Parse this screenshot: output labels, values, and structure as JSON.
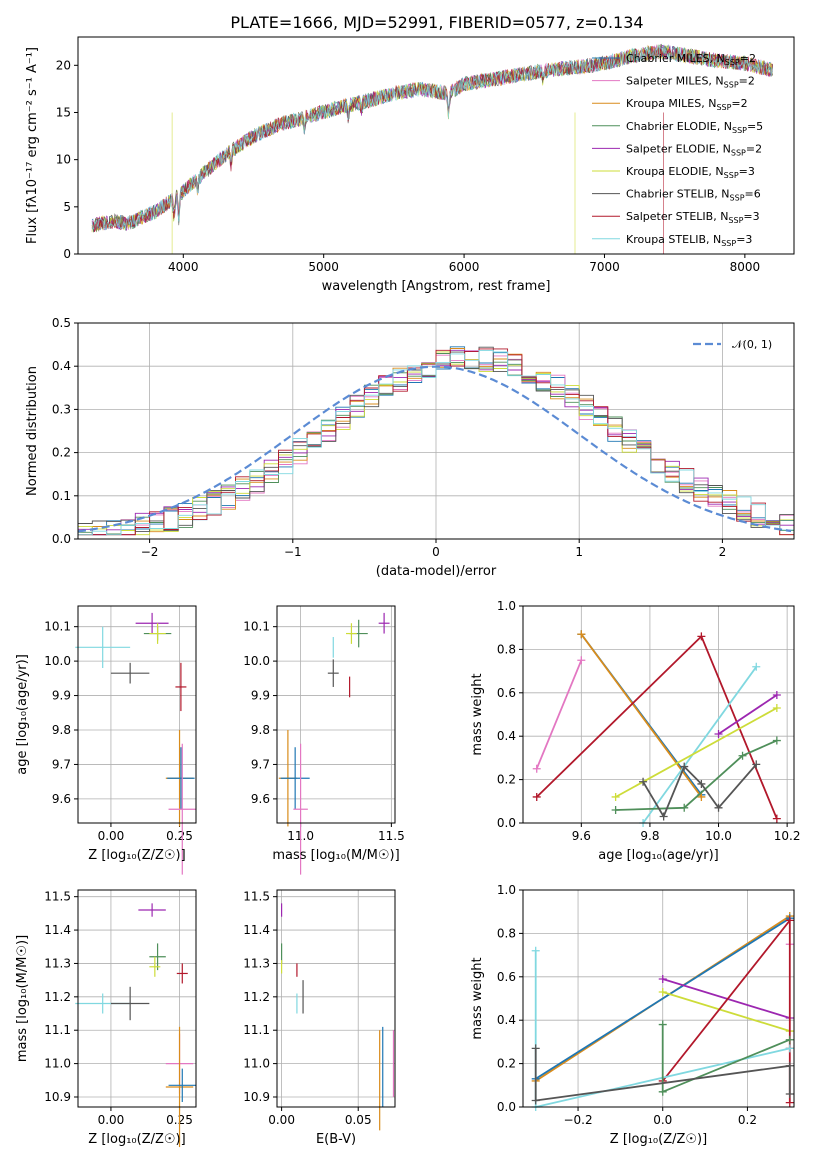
{
  "title": "PLATE=1666, MJD=52991, FIBERID=0577, z=0.134",
  "colors": {
    "chabrier_miles": "#1f77b4",
    "salpeter_miles": "#e377c2",
    "kroupa_miles": "#d98c1c",
    "chabrier_elodie": "#4f8f5a",
    "salpeter_elodie": "#9c27b0",
    "kroupa_elodie": "#cddc39",
    "chabrier_stelib": "#555555",
    "salpeter_stelib": "#b2182b",
    "kroupa_stelib": "#80d8e0",
    "normal": "#5b8bd4"
  },
  "models": [
    {
      "key": "chabrier_miles",
      "label": "Chabrier MILES, N",
      "sub": "SSP",
      "nssp": "=2"
    },
    {
      "key": "salpeter_miles",
      "label": "Salpeter MILES, N",
      "sub": "SSP",
      "nssp": "=2"
    },
    {
      "key": "kroupa_miles",
      "label": "Kroupa MILES, N",
      "sub": "SSP",
      "nssp": "=2"
    },
    {
      "key": "chabrier_elodie",
      "label": "Chabrier ELODIE, N",
      "sub": "SSP",
      "nssp": "=5"
    },
    {
      "key": "salpeter_elodie",
      "label": "Salpeter ELODIE, N",
      "sub": "SSP",
      "nssp": "=2"
    },
    {
      "key": "kroupa_elodie",
      "label": "Kroupa ELODIE, N",
      "sub": "SSP",
      "nssp": "=3"
    },
    {
      "key": "chabrier_stelib",
      "label": "Chabrier STELIB, N",
      "sub": "SSP",
      "nssp": "=6"
    },
    {
      "key": "salpeter_stelib",
      "label": "Salpeter STELIB, N",
      "sub": "SSP",
      "nssp": "=3"
    },
    {
      "key": "kroupa_stelib",
      "label": "Kroupa STELIB, N",
      "sub": "SSP",
      "nssp": "=3"
    }
  ],
  "chart_data": [
    {
      "type": "line",
      "panel": "spectrum",
      "xlabel": "wavelength [Angstrom, rest frame]",
      "ylabel": "Flux [fλ10⁻¹⁷ erg cm⁻² s⁻¹ A⁻¹]",
      "xlim": [
        3250,
        8350
      ],
      "ylim": [
        0,
        23
      ],
      "xticks": [
        4000,
        5000,
        6000,
        7000,
        8000
      ],
      "yticks": [
        0,
        5,
        10,
        15,
        20
      ],
      "series_shape": [
        [
          3350,
          3.0
        ],
        [
          3500,
          3.5
        ],
        [
          3600,
          3.2
        ],
        [
          3800,
          4.5
        ],
        [
          3950,
          6.0
        ],
        [
          4100,
          8.0
        ],
        [
          4300,
          10.5
        ],
        [
          4500,
          12.5
        ],
        [
          4700,
          13.8
        ],
        [
          4900,
          14.6
        ],
        [
          5100,
          15.5
        ],
        [
          5300,
          16.2
        ],
        [
          5500,
          17.0
        ],
        [
          5700,
          17.5
        ],
        [
          5890,
          17.0
        ],
        [
          6000,
          18.0
        ],
        [
          6200,
          18.5
        ],
        [
          6400,
          19.0
        ],
        [
          6600,
          19.5
        ],
        [
          6800,
          19.8
        ],
        [
          7000,
          20.2
        ],
        [
          7200,
          21.0
        ],
        [
          7400,
          21.5
        ],
        [
          7600,
          21.0
        ],
        [
          7800,
          20.5
        ],
        [
          8000,
          20.2
        ],
        [
          8200,
          19.5
        ]
      ],
      "dropouts": [
        {
          "model": "kroupa_elodie",
          "x": 3920
        },
        {
          "model": "kroupa_elodie",
          "x": 6790
        },
        {
          "model": "salpeter_stelib",
          "x": 7420
        }
      ]
    },
    {
      "type": "line",
      "panel": "residuals",
      "xlabel": "(data-model)/error",
      "ylabel": "Normed distribution",
      "xlim": [
        -2.5,
        2.5
      ],
      "ylim": [
        0,
        0.5
      ],
      "xticks": [
        -2,
        -1,
        0,
        1,
        2
      ],
      "yticks": [
        0.0,
        0.1,
        0.2,
        0.3,
        0.4,
        0.5
      ],
      "legend": "𝒩(0, 1)",
      "bin_width": 0.1
    },
    {
      "type": "scatter",
      "panel": "age_vs_Z",
      "xlabel": "Z [log₁₀(Z/Z☉)]",
      "ylabel": "age  [log₁₀(age/yr)]",
      "xlim": [
        -0.12,
        0.31
      ],
      "ylim": [
        9.53,
        10.16
      ],
      "xticks": [
        0.0,
        0.25
      ],
      "yticks": [
        9.6,
        9.7,
        9.8,
        9.9,
        10.0,
        10.1
      ],
      "points": [
        {
          "model": "kroupa_stelib",
          "x": -0.03,
          "y": 10.04,
          "xerr": 0.1,
          "yerr": 0.06
        },
        {
          "model": "chabrier_stelib",
          "x": 0.07,
          "y": 9.965,
          "xerr": 0.07,
          "yerr": 0.03
        },
        {
          "model": "salpeter_elodie",
          "x": 0.15,
          "y": 10.11,
          "xerr": 0.06,
          "yerr": 0.03
        },
        {
          "model": "chabrier_elodie",
          "x": 0.17,
          "y": 10.08,
          "xerr": 0.05,
          "yerr": 0.02
        },
        {
          "model": "kroupa_elodie",
          "x": 0.17,
          "y": 10.08,
          "xerr": 0.03,
          "yerr": 0.03
        },
        {
          "model": "salpeter_stelib",
          "x": 0.255,
          "y": 9.925,
          "xerr": 0.02,
          "yerr": 0.07
        },
        {
          "model": "kroupa_miles",
          "x": 0.25,
          "y": 9.66,
          "xerr": 0.05,
          "yerr": 0.14
        },
        {
          "model": "chabrier_miles",
          "x": 0.255,
          "y": 9.66,
          "xerr": 0.05,
          "yerr": 0.09
        },
        {
          "model": "salpeter_miles",
          "x": 0.26,
          "y": 9.57,
          "xerr": 0.05,
          "yerr": 0.19
        }
      ]
    },
    {
      "type": "scatter",
      "panel": "age_vs_mass",
      "xlabel": "mass [log₁₀(M/M☉)]",
      "xlim": [
        10.87,
        11.52
      ],
      "ylim": [
        9.53,
        10.16
      ],
      "xticks": [
        11.0,
        11.5
      ],
      "yticks": [
        9.6,
        9.7,
        9.8,
        9.9,
        10.0,
        10.1
      ],
      "points": [
        {
          "model": "kroupa_stelib",
          "x": 11.18,
          "y": 10.04,
          "xerr": 0.0,
          "yerr": 0.03
        },
        {
          "model": "chabrier_stelib",
          "x": 11.18,
          "y": 9.965,
          "xerr": 0.03,
          "yerr": 0.04
        },
        {
          "model": "salpeter_elodie",
          "x": 11.46,
          "y": 10.11,
          "xerr": 0.03,
          "yerr": 0.03
        },
        {
          "model": "chabrier_elodie",
          "x": 11.32,
          "y": 10.08,
          "xerr": 0.05,
          "yerr": 0.04
        },
        {
          "model": "kroupa_elodie",
          "x": 11.28,
          "y": 10.08,
          "xerr": 0.03,
          "yerr": 0.03
        },
        {
          "model": "salpeter_stelib",
          "x": 11.27,
          "y": 9.925,
          "xerr": 0.0,
          "yerr": 0.03
        },
        {
          "model": "kroupa_miles",
          "x": 10.93,
          "y": 9.66,
          "xerr": 0.05,
          "yerr": 0.14
        },
        {
          "model": "chabrier_miles",
          "x": 10.97,
          "y": 9.66,
          "xerr": 0.08,
          "yerr": 0.09
        },
        {
          "model": "salpeter_miles",
          "x": 11.0,
          "y": 9.57,
          "xerr": 0.04,
          "yerr": 0.19
        }
      ]
    },
    {
      "type": "line",
      "panel": "mass_weight_vs_age",
      "xlabel": "age  [log₁₀(age/yr)]",
      "ylabel": "mass weight",
      "xlim": [
        9.43,
        10.22
      ],
      "ylim": [
        0,
        1.0
      ],
      "xticks": [
        9.6,
        9.8,
        10.0,
        10.2
      ],
      "yticks": [
        0.0,
        0.2,
        0.4,
        0.6,
        0.8,
        1.0
      ],
      "series": [
        {
          "model": "salpeter_miles",
          "x": [
            9.47,
            9.6
          ],
          "y": [
            0.25,
            0.75
          ]
        },
        {
          "model": "chabrier_miles",
          "x": [
            9.6,
            9.95
          ],
          "y": [
            0.87,
            0.13
          ]
        },
        {
          "model": "kroupa_miles",
          "x": [
            9.6,
            9.95
          ],
          "y": [
            0.87,
            0.12
          ]
        },
        {
          "model": "salpeter_stelib",
          "x": [
            9.47,
            9.95,
            10.17
          ],
          "y": [
            0.12,
            0.86,
            0.02
          ]
        },
        {
          "model": "kroupa_stelib",
          "x": [
            9.78,
            10.11
          ],
          "y": [
            0.0,
            0.72
          ]
        },
        {
          "model": "salpeter_elodie",
          "x": [
            10.0,
            10.17
          ],
          "y": [
            0.41,
            0.59
          ]
        },
        {
          "model": "kroupa_elodie",
          "x": [
            9.7,
            10.17
          ],
          "y": [
            0.12,
            0.53
          ]
        },
        {
          "model": "chabrier_elodie",
          "x": [
            9.7,
            9.9,
            10.07,
            10.17
          ],
          "y": [
            0.06,
            0.07,
            0.31,
            0.38
          ]
        },
        {
          "model": "chabrier_stelib",
          "x": [
            9.78,
            9.84,
            9.9,
            9.95,
            10.0,
            10.11
          ],
          "y": [
            0.19,
            0.03,
            0.26,
            0.18,
            0.07,
            0.27
          ]
        }
      ]
    },
    {
      "type": "scatter",
      "panel": "mass_vs_Z",
      "xlabel": "Z [log₁₀(Z/Z☉)]",
      "ylabel": "mass [log₁₀(M/M☉)]",
      "xlim": [
        -0.12,
        0.31
      ],
      "ylim": [
        10.87,
        11.52
      ],
      "xticks": [
        0.0,
        0.25
      ],
      "yticks": [
        10.9,
        11.0,
        11.1,
        11.2,
        11.3,
        11.4,
        11.5
      ],
      "points": [
        {
          "model": "salpeter_elodie",
          "x": 0.15,
          "y": 11.46,
          "xerr": 0.05,
          "yerr": 0.02
        },
        {
          "model": "chabrier_elodie",
          "x": 0.17,
          "y": 11.32,
          "xerr": 0.03,
          "yerr": 0.04
        },
        {
          "model": "kroupa_elodie",
          "x": 0.16,
          "y": 11.29,
          "xerr": 0.02,
          "yerr": 0.03
        },
        {
          "model": "salpeter_stelib",
          "x": 0.26,
          "y": 11.27,
          "xerr": 0.02,
          "yerr": 0.03
        },
        {
          "model": "kroupa_stelib",
          "x": -0.03,
          "y": 11.18,
          "xerr": 0.1,
          "yerr": 0.03
        },
        {
          "model": "chabrier_stelib",
          "x": 0.07,
          "y": 11.18,
          "xerr": 0.07,
          "yerr": 0.05
        },
        {
          "model": "salpeter_miles",
          "x": 0.25,
          "y": 11.0,
          "xerr": 0.05,
          "yerr": 0.09
        },
        {
          "model": "kroupa_miles",
          "x": 0.25,
          "y": 10.93,
          "xerr": 0.05,
          "yerr": 0.18
        },
        {
          "model": "chabrier_miles",
          "x": 0.26,
          "y": 10.935,
          "xerr": 0.05,
          "yerr": 0.05
        }
      ]
    },
    {
      "type": "scatter",
      "panel": "mass_vs_ebv",
      "xlabel": "E(B-V)",
      "xlim": [
        -0.003,
        0.074
      ],
      "ylim": [
        10.87,
        11.52
      ],
      "xticks": [
        0.0,
        0.05
      ],
      "yticks": [
        10.9,
        11.0,
        11.1,
        11.2,
        11.3,
        11.4,
        11.5
      ],
      "points": [
        {
          "model": "salpeter_elodie",
          "x": 0.0,
          "y": 11.46,
          "xerr": 0.0,
          "yerr": 0.02
        },
        {
          "model": "chabrier_elodie",
          "x": 0.0,
          "y": 11.33,
          "xerr": 0.0,
          "yerr": 0.03
        },
        {
          "model": "kroupa_elodie",
          "x": 0.0,
          "y": 11.29,
          "xerr": 0.0,
          "yerr": 0.02
        },
        {
          "model": "salpeter_stelib",
          "x": 0.01,
          "y": 11.28,
          "xerr": 0.0,
          "yerr": 0.02
        },
        {
          "model": "kroupa_stelib",
          "x": 0.01,
          "y": 11.18,
          "xerr": 0.0,
          "yerr": 0.03
        },
        {
          "model": "chabrier_stelib",
          "x": 0.014,
          "y": 11.2,
          "xerr": 0.0,
          "yerr": 0.05
        },
        {
          "model": "kroupa_miles",
          "x": 0.064,
          "y": 10.95,
          "xerr": 0.0,
          "yerr": 0.15
        },
        {
          "model": "chabrier_miles",
          "x": 0.066,
          "y": 10.99,
          "xerr": 0.0,
          "yerr": 0.12
        },
        {
          "model": "salpeter_miles",
          "x": 0.073,
          "y": 11.0,
          "xerr": 0.0,
          "yerr": 0.1
        }
      ]
    },
    {
      "type": "line",
      "panel": "mass_weight_vs_Z",
      "xlabel": "Z [log₁₀(Z/Z☉)]",
      "ylabel": "mass weight",
      "xlim": [
        -0.33,
        0.31
      ],
      "ylim": [
        0,
        1.0
      ],
      "xticks": [
        -0.2,
        0.0,
        0.2
      ],
      "yticks": [
        0.0,
        0.2,
        0.4,
        0.6,
        0.8,
        1.0
      ],
      "series": [
        {
          "model": "kroupa_miles",
          "x": [
            -0.3,
            0.3
          ],
          "y": [
            0.12,
            0.88
          ]
        },
        {
          "model": "chabrier_miles",
          "x": [
            -0.3,
            0.3
          ],
          "y": [
            0.13,
            0.87
          ]
        },
        {
          "model": "salpeter_miles",
          "x": [
            0.3
          ],
          "y": [
            0.75
          ]
        },
        {
          "model": "salpeter_elodie",
          "x": [
            0.0,
            0.3
          ],
          "y": [
            0.59,
            0.41
          ]
        },
        {
          "model": "kroupa_elodie",
          "x": [
            0.0,
            0.3
          ],
          "y": [
            0.53,
            0.35
          ]
        },
        {
          "model": "salpeter_stelib",
          "x": [
            0.0,
            0.3,
            0.3,
            0.3
          ],
          "y": [
            0.12,
            0.86,
            0.02,
            0.27
          ]
        },
        {
          "model": "kroupa_stelib",
          "x": [
            -0.3,
            -0.3,
            0.3
          ],
          "y": [
            0.72,
            0.0,
            0.27
          ]
        },
        {
          "model": "chabrier_elodie",
          "x": [
            0.0,
            0.0,
            0.3
          ],
          "y": [
            0.38,
            0.07,
            0.31
          ]
        },
        {
          "model": "chabrier_stelib",
          "x": [
            -0.3,
            -0.3,
            0.3,
            0.3
          ],
          "y": [
            0.27,
            0.03,
            0.19,
            0.06
          ]
        }
      ]
    }
  ]
}
